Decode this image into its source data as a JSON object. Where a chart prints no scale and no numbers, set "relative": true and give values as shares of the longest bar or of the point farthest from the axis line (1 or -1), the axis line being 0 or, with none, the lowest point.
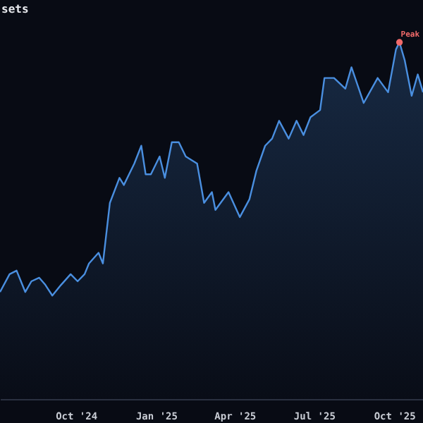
{
  "chart_data": {
    "type": "area",
    "title": "sets",
    "relative": true,
    "xlim": [
      "2024-07-06",
      "2025-11-03"
    ],
    "xticks": [
      {
        "value": "2024-10-01",
        "label": "Oct '24"
      },
      {
        "value": "2025-01-01",
        "label": "Jan '25"
      },
      {
        "value": "2025-04-01",
        "label": "Apr '25"
      },
      {
        "value": "2025-07-01",
        "label": "Jul '25"
      },
      {
        "value": "2025-10-01",
        "label": "Oct '25"
      }
    ],
    "x": [
      "2024-07-06",
      "2024-07-17",
      "2024-07-25",
      "2024-07-30",
      "2024-08-04",
      "2024-08-11",
      "2024-08-20",
      "2024-08-27",
      "2024-09-04",
      "2024-09-14",
      "2024-09-25",
      "2024-10-03",
      "2024-10-11",
      "2024-10-16",
      "2024-10-27",
      "2024-11-01",
      "2024-11-09",
      "2024-11-20",
      "2024-11-25",
      "2024-12-07",
      "2024-12-15",
      "2024-12-20",
      "2024-12-26",
      "2025-01-05",
      "2025-01-11",
      "2025-01-19",
      "2025-01-27",
      "2025-02-04",
      "2025-02-17",
      "2025-02-25",
      "2025-03-06",
      "2025-03-10",
      "2025-03-25",
      "2025-04-07",
      "2025-04-18",
      "2025-04-26",
      "2025-05-06",
      "2025-05-14",
      "2025-05-22",
      "2025-06-02",
      "2025-06-11",
      "2025-06-19",
      "2025-06-27",
      "2025-07-08",
      "2025-07-13",
      "2025-07-24",
      "2025-08-06",
      "2025-08-13",
      "2025-08-27",
      "2025-09-12",
      "2025-09-24",
      "2025-10-03",
      "2025-10-07",
      "2025-10-13",
      "2025-10-21",
      "2025-10-28",
      "2025-11-03"
    ],
    "series": [
      {
        "color": "#4a8fe0",
        "values": [
          0.3,
          0.35,
          0.36,
          0.33,
          0.3,
          0.33,
          0.34,
          0.32,
          0.29,
          0.32,
          0.35,
          0.33,
          0.35,
          0.38,
          0.41,
          0.38,
          0.55,
          0.62,
          0.6,
          0.66,
          0.71,
          0.63,
          0.63,
          0.68,
          0.62,
          0.72,
          0.72,
          0.68,
          0.66,
          0.55,
          0.58,
          0.53,
          0.58,
          0.51,
          0.56,
          0.64,
          0.71,
          0.73,
          0.78,
          0.73,
          0.78,
          0.74,
          0.79,
          0.81,
          0.9,
          0.9,
          0.87,
          0.93,
          0.83,
          0.9,
          0.86,
          0.98,
          1,
          0.95,
          0.85,
          0.91,
          0.86
        ]
      }
    ],
    "annotations": [
      {
        "text": "Peak",
        "x": "2025-10-07",
        "y": 1
      }
    ]
  }
}
